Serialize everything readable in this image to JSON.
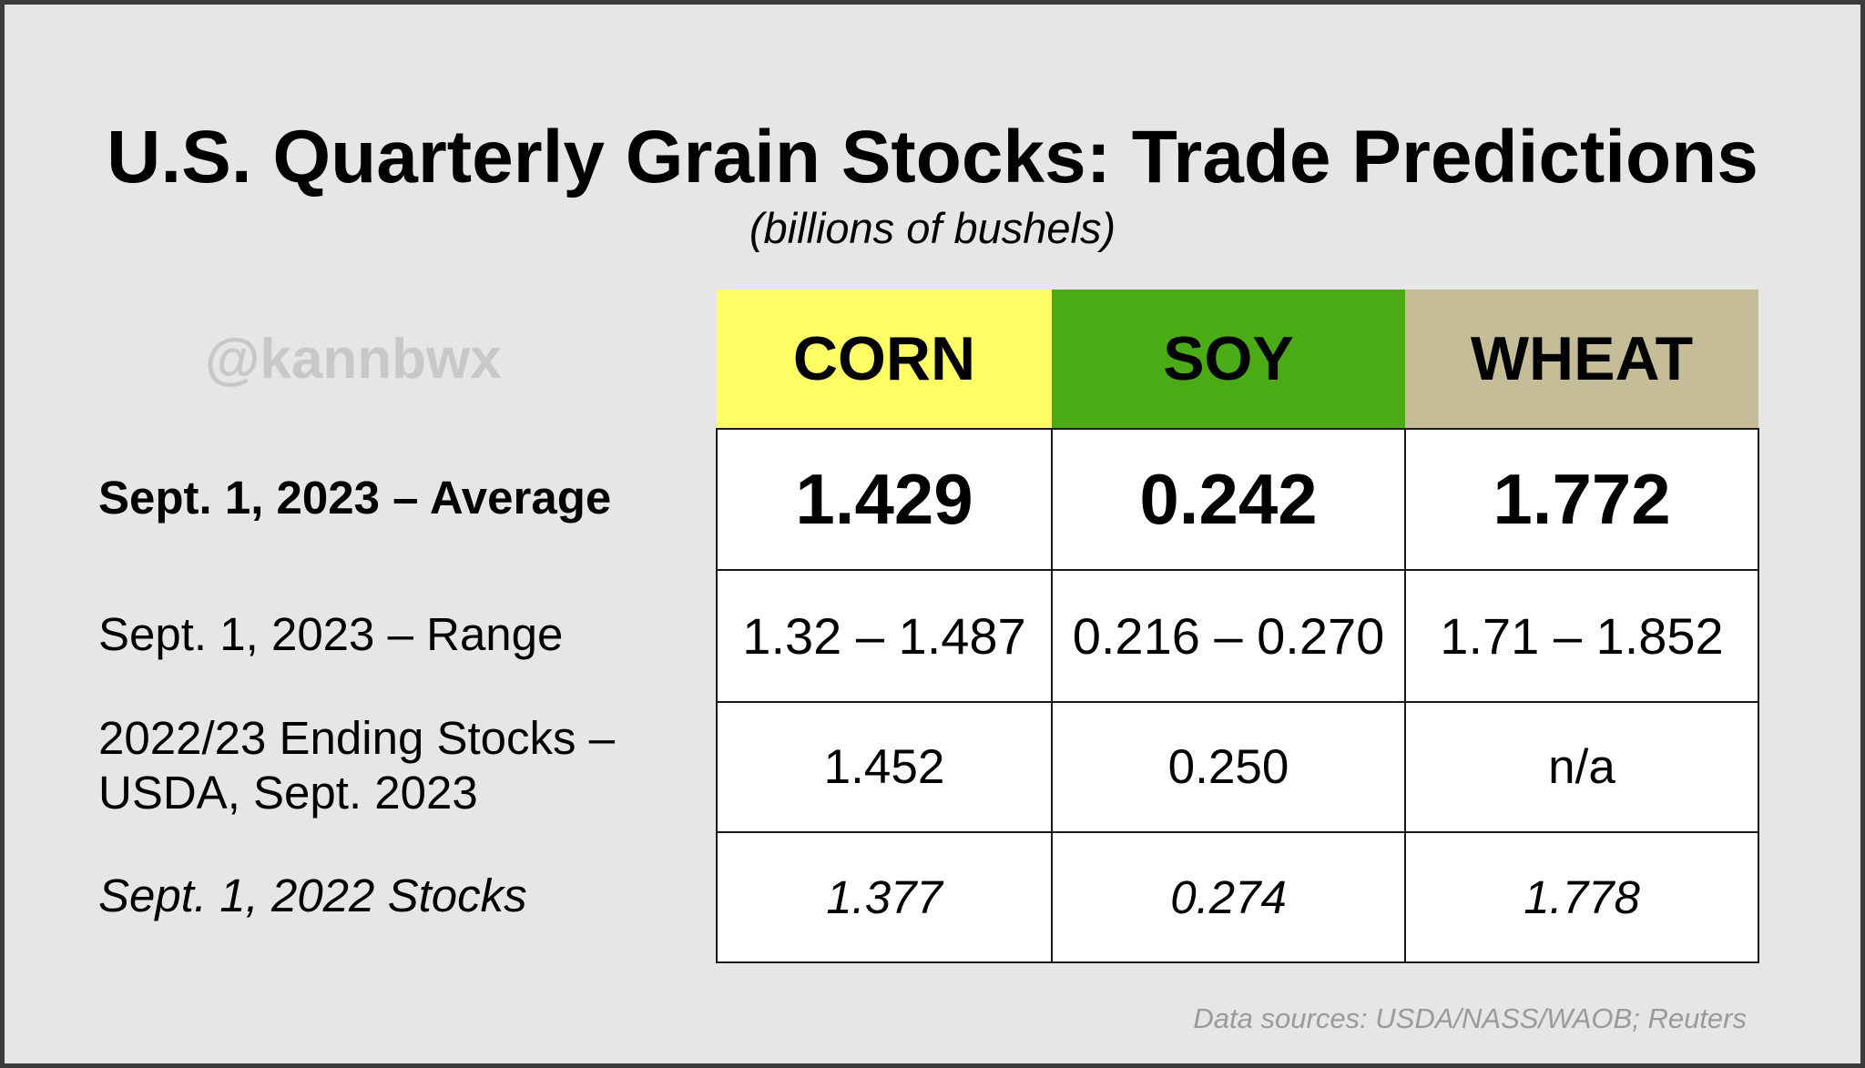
{
  "chart_data": {
    "type": "table",
    "title": "U.S. Quarterly Grain Stocks: Trade Predictions",
    "subtitle": "(billions of bushels)",
    "watermark": "@kannbwx",
    "columns": [
      {
        "label": "CORN",
        "color": "#ffff66"
      },
      {
        "label": "SOY",
        "color": "#4aab17"
      },
      {
        "label": "WHEAT",
        "color": "#c4bd97"
      }
    ],
    "rows": [
      {
        "label": "Sept. 1, 2023 – Average",
        "values": [
          "1.429",
          "0.242",
          "1.772"
        ]
      },
      {
        "label": "Sept. 1, 2023 – Range",
        "values": [
          "1.32 – 1.487",
          "0.216 – 0.270",
          "1.71 – 1.852"
        ]
      },
      {
        "label_line1": "2022/23 Ending Stocks –",
        "label_line2": "USDA, Sept. 2023",
        "values": [
          "1.452",
          "0.250",
          "n/a"
        ]
      },
      {
        "label": "Sept. 1, 2022 Stocks",
        "values": [
          "1.377",
          "0.274",
          "1.778"
        ]
      }
    ],
    "source": "Data sources: USDA/NASS/WAOB; Reuters"
  }
}
